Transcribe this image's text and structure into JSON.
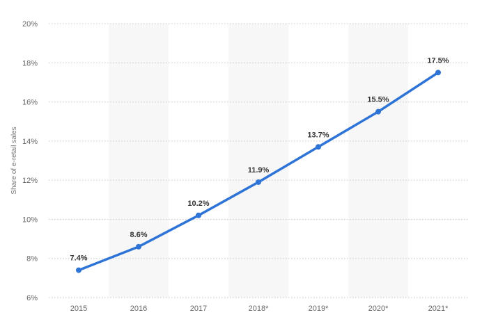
{
  "chart_data": {
    "type": "line",
    "categories": [
      "2015",
      "2016",
      "2017",
      "2018*",
      "2019*",
      "2020*",
      "2021*"
    ],
    "series": [
      {
        "values": [
          7.4,
          8.6,
          10.2,
          11.9,
          13.7,
          15.5,
          17.5
        ],
        "data_labels": [
          "7.4%",
          "8.6%",
          "10.2%",
          "11.9%",
          "13.7%",
          "15.5%",
          "17.5%"
        ]
      }
    ],
    "title": "",
    "xlabel": "",
    "ylabel": "Share of e-retail sales",
    "ylim": [
      6,
      20
    ],
    "yticks": [
      6,
      8,
      10,
      12,
      14,
      16,
      18,
      20
    ],
    "ytick_labels": [
      "6%",
      "8%",
      "10%",
      "12%",
      "14%",
      "16%",
      "18%",
      "20%"
    ],
    "grid": true,
    "alternating_column_bands": true,
    "legend": "none",
    "colors": {
      "line": "#2e74d6",
      "band": "#f7f7f7",
      "grid": "#c8c8c8"
    }
  }
}
